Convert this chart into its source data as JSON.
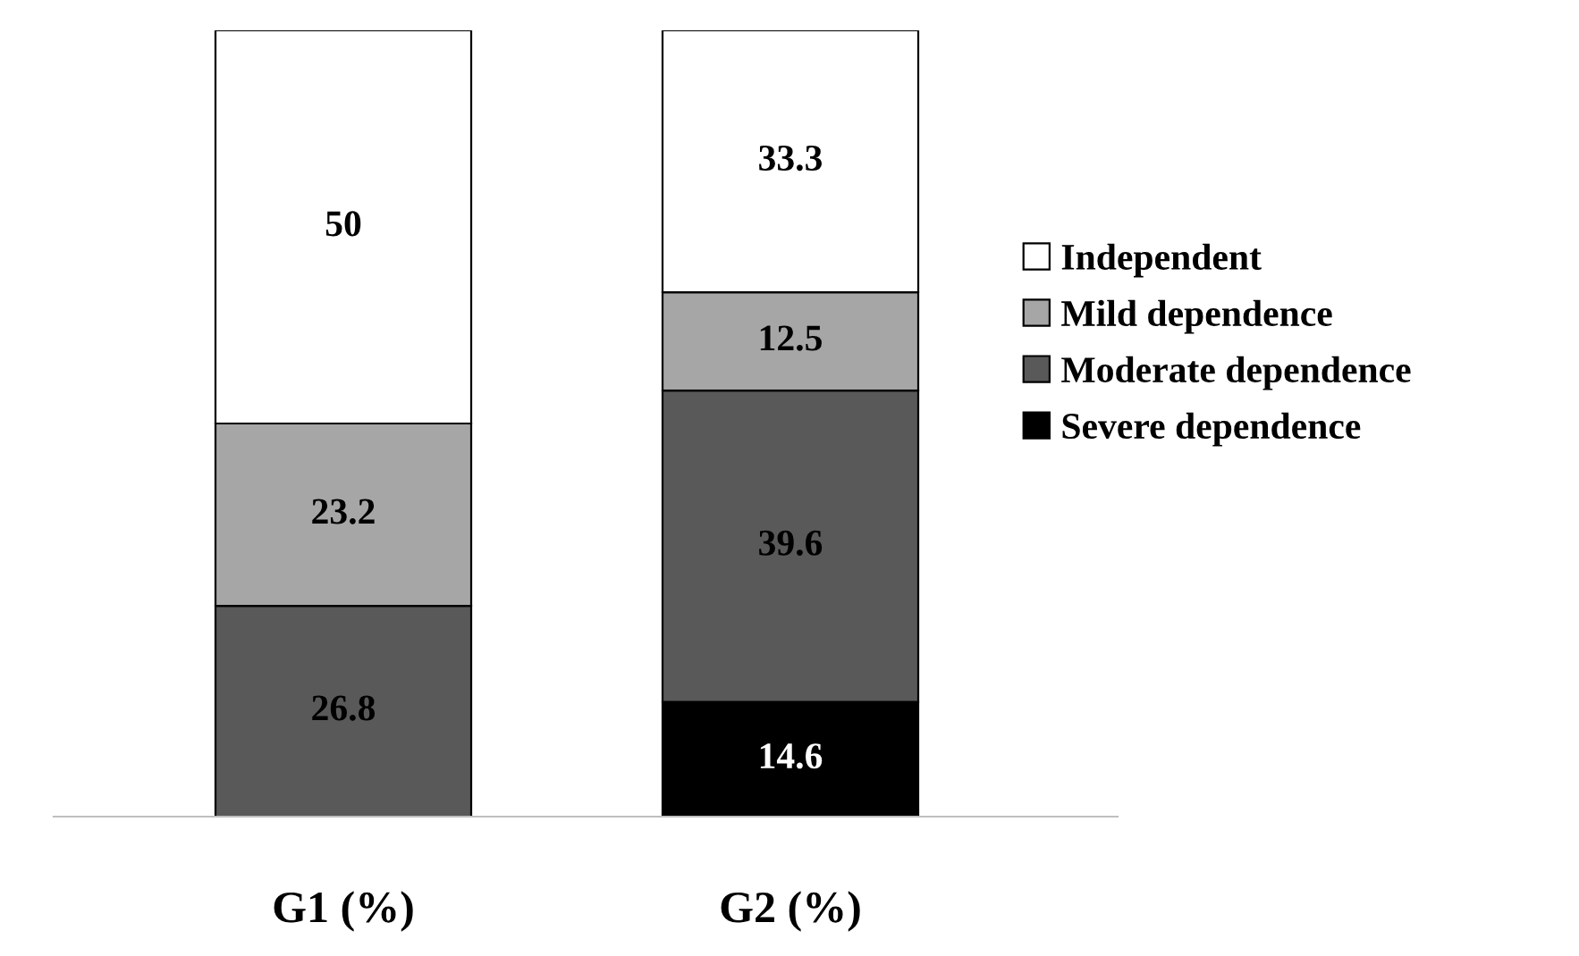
{
  "chart_data": {
    "type": "bar",
    "stacked": true,
    "categories": [
      "G1 (%)",
      "G2 (%)"
    ],
    "series": [
      {
        "name": "Severe dependence",
        "color": "#000000",
        "values": [
          null,
          14.6
        ]
      },
      {
        "name": "Moderate dependence",
        "color": "#595959",
        "values": [
          26.8,
          39.6
        ]
      },
      {
        "name": "Mild dependence",
        "color": "#a6a6a6",
        "values": [
          23.2,
          12.5
        ]
      },
      {
        "name": "Independent",
        "color": "#ffffff",
        "values": [
          50,
          33.3
        ]
      }
    ],
    "data_labels": true,
    "legend": "right",
    "grid": false
  }
}
